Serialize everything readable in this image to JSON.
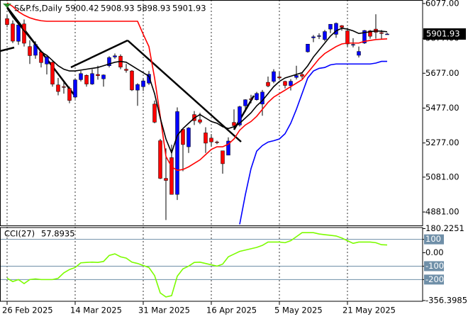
{
  "chart_data": [
    {
      "type": "candlestick",
      "title": "S&P.fs,Daily",
      "categories": [
        "26 Feb 2025",
        null,
        null,
        null,
        null,
        null,
        null,
        null,
        null,
        null,
        null,
        null,
        "14 Mar 2025",
        null,
        null,
        null,
        null,
        null,
        null,
        null,
        null,
        null,
        null,
        null,
        "31 Mar 2025",
        null,
        null,
        null,
        null,
        null,
        null,
        null,
        null,
        null,
        null,
        null,
        "16 Apr 2025",
        null,
        null,
        null,
        null,
        null,
        null,
        null,
        null,
        null,
        null,
        null,
        "5 May 2025",
        null,
        null,
        null,
        null,
        null,
        null,
        null,
        null,
        null,
        null,
        null,
        "21 May 2025",
        null,
        null,
        null,
        null,
        null,
        null,
        null
      ],
      "open": [
        5990,
        5960,
        5860,
        5960,
        5830,
        5780,
        5800,
        5730,
        5740,
        5610,
        5600,
        5590,
        5540,
        5640,
        5665,
        5615,
        5670,
        5645,
        5720,
        5770,
        5775,
        5700,
        5690,
        5580,
        5600,
        5620,
        5500,
        5290,
        5074,
        5193,
        4982,
        5355,
        5255,
        5440,
        5410,
        5335,
        5305,
        5283,
        5232,
        5207,
        5395,
        5380,
        5490,
        5530,
        5525,
        5500,
        5625,
        5630,
        5656,
        5630,
        5606,
        5653,
        5670,
        5800,
        5880,
        5890,
        5870,
        5930,
        5900,
        5950,
        5920,
        5840,
        5780,
        5850,
        5920,
        5930,
        5910,
        5900.42
      ],
      "high": [
        6010,
        5980,
        5960,
        5985,
        5866,
        5860,
        5810,
        5780,
        5745,
        5650,
        5630,
        5600,
        5645,
        5690,
        5670,
        5700,
        5720,
        5670,
        5775,
        5790,
        5785,
        5730,
        5695,
        5620,
        5650,
        5690,
        5520,
        5300,
        5246,
        5267,
        5481,
        5355,
        5368,
        5460,
        5450,
        5367,
        5328,
        5290,
        5233,
        5309,
        5470,
        5490,
        5528,
        5553,
        5570,
        5581,
        5658,
        5700,
        5683,
        5634,
        5643,
        5720,
        5683,
        5845,
        5896,
        5906,
        5925,
        5958,
        5968,
        5953,
        5938,
        5878,
        5830,
        5925,
        5925,
        6015,
        5925,
        5908.93
      ],
      "low": [
        5940,
        5850,
        5840,
        5830,
        5730,
        5760,
        5710,
        5670,
        5600,
        5550,
        5560,
        5505,
        5530,
        5630,
        5600,
        5610,
        5640,
        5600,
        5710,
        5760,
        5700,
        5680,
        5575,
        5490,
        5575,
        5610,
        5390,
        5070,
        4835,
        4982,
        4950,
        5115,
        5220,
        5380,
        5385,
        5220,
        5255,
        5270,
        5101,
        5207,
        5360,
        5371,
        5455,
        5505,
        5520,
        5433,
        5597,
        5620,
        5639,
        5590,
        5578,
        5641,
        5645,
        5795,
        5855,
        5873,
        5860,
        5907,
        5880,
        5921,
        5830,
        5825,
        5767,
        5845,
        5875,
        5875,
        5870,
        5898.93
      ],
      "close": [
        5956,
        5861,
        5954,
        5849,
        5778,
        5842,
        5738,
        5770,
        5614,
        5572,
        5599,
        5521,
        5639,
        5675,
        5615,
        5675,
        5663,
        5667,
        5767,
        5777,
        5712,
        5693,
        5581,
        5612,
        5633,
        5671,
        5396,
        5074,
        5062,
        4982,
        5457,
        5268,
        5363,
        5405,
        5396,
        5276,
        5283,
        5280,
        5158,
        5288,
        5376,
        5485,
        5525,
        5528,
        5561,
        5569,
        5604,
        5686,
        5650,
        5607,
        5631,
        5664,
        5660,
        5844,
        5886,
        5892,
        5916,
        5958,
        5963,
        5940,
        5845,
        5842,
        5802,
        5922,
        5889,
        5912,
        5905,
        5901.93
      ],
      "up_color": "#0000ff",
      "down_color": "#ff0000",
      "wick_color": "#000000",
      "series": [
        {
          "color": "#ff0000",
          "values": [
            6080,
            6060,
            6030,
            6010,
            5995,
            5985,
            5978,
            5975,
            5975,
            5975,
            5975,
            5975,
            5975,
            5975,
            5975,
            5975,
            5975,
            5975,
            5975,
            5975,
            5975,
            5975,
            5975,
            5975,
            5900,
            5830,
            5650,
            5430,
            5200,
            5140,
            5120,
            5125,
            5140,
            5160,
            5180,
            5210,
            5240,
            5255,
            5255,
            5270,
            5300,
            5350,
            5380,
            5400,
            5430,
            5470,
            5510,
            5540,
            5560,
            5580,
            5600,
            5620,
            5640,
            5680,
            5720,
            5760,
            5790,
            5810,
            5830,
            5845,
            5850,
            5850,
            5850,
            5860,
            5865,
            5870,
            5872,
            5874
          ]
        },
        {
          "color": "#000000",
          "values": [
            6050,
            6000,
            5960,
            5920,
            5880,
            5840,
            5800,
            5780,
            5750,
            5720,
            5700,
            5690,
            5690,
            5695,
            5700,
            5705,
            5710,
            5720,
            5730,
            5740,
            5745,
            5740,
            5720,
            5700,
            5680,
            5660,
            5560,
            5420,
            5300,
            5220,
            5320,
            5360,
            5390,
            5420,
            5440,
            5420,
            5400,
            5390,
            5370,
            5360,
            5370,
            5390,
            5420,
            5450,
            5490,
            5520,
            5560,
            5600,
            5630,
            5650,
            5660,
            5670,
            5680,
            5720,
            5770,
            5810,
            5850,
            5890,
            5920,
            5935,
            5930,
            5920,
            5905,
            5910,
            5915,
            5920,
            5918,
            5915
          ]
        },
        {
          "color": "#0000ff",
          "values": [
            null,
            null,
            null,
            null,
            null,
            null,
            null,
            null,
            null,
            null,
            null,
            null,
            null,
            null,
            null,
            null,
            null,
            null,
            null,
            null,
            null,
            null,
            null,
            null,
            null,
            null,
            null,
            null,
            null,
            null,
            null,
            null,
            null,
            null,
            null,
            null,
            null,
            null,
            null,
            null,
            null,
            4810,
            4980,
            5130,
            5230,
            5262,
            5282,
            5290,
            5300,
            5330,
            5390,
            5470,
            5560,
            5650,
            5690,
            5705,
            5710,
            5725,
            5730,
            5730,
            5730,
            5730,
            5730,
            5730,
            5730,
            5735,
            5745,
            5745
          ]
        }
      ],
      "ylim": [
        4804,
        6097
      ],
      "yticks": [
        {
          "value": 6077,
          "label": "6077.00"
        },
        {
          "value": 5877,
          "label": "5877.00"
        },
        {
          "value": 5677,
          "label": "5677.00"
        },
        {
          "value": 5477,
          "label": "5477.00"
        },
        {
          "value": 5277,
          "label": "5277.00"
        },
        {
          "value": 5081,
          "label": "5081.00"
        },
        {
          "value": 4881,
          "label": "4881.00"
        }
      ]
    },
    {
      "type": "line",
      "title": "CCI(27)",
      "series": [
        {
          "name": "CCI(27)",
          "color": "#7cfc00",
          "values": [
            -190,
            -215,
            -200,
            -230,
            -200,
            -195,
            -200,
            -200,
            -200,
            -190,
            -150,
            -125,
            -110,
            -75,
            -72,
            -70,
            -72,
            -65,
            -20,
            -8,
            -30,
            -40,
            -70,
            -80,
            -95,
            -110,
            -170,
            -300,
            -330,
            -320,
            -175,
            -120,
            -100,
            -72,
            -70,
            -80,
            -90,
            -100,
            -85,
            -30,
            -10,
            10,
            20,
            30,
            40,
            55,
            80,
            80,
            80,
            75,
            90,
            120,
            150,
            150,
            150,
            140,
            135,
            130,
            125,
            110,
            90,
            70,
            80,
            80,
            80,
            75,
            60,
            57.8935
          ]
        }
      ],
      "levels": [
        100,
        -100,
        -200
      ],
      "level_color": "#6f8fa8",
      "ylim": [
        -362,
        188
      ],
      "yticks": [
        180.2251,
        100,
        {
          "value": 0,
          "label": "0.00"
        },
        -100,
        -200,
        -356.3985
      ]
    }
  ]
}
